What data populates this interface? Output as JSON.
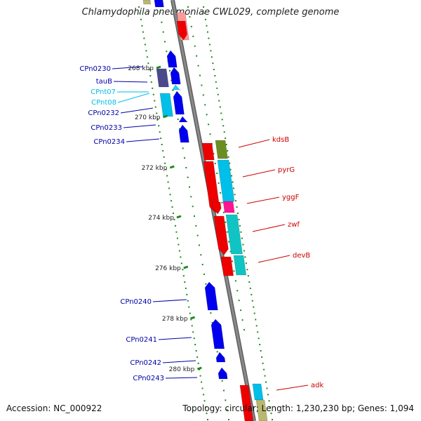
{
  "title": "Chlamydophila pneumoniae CWL029, complete genome",
  "footer": {
    "accession": "Accession: NC_000922",
    "topology": "Topology: circular; Length: 1,230,230 bp; Genes: 1,094"
  },
  "colors": {
    "blue": "#0000ee",
    "dark_blue": "#1a1aa8",
    "slate": "#4a4a8c",
    "cyan": "#00bfe8",
    "light_cyan": "#22d3ee",
    "red": "#ee0000",
    "olive": "#6b8e23",
    "teal": "#10c4c4",
    "magenta": "#ff1493",
    "pink": "#ff9a9a",
    "khaki": "#b8b870",
    "backbone": "#8a8a8a",
    "tick": "#1a8a1a"
  },
  "scale_labels": [
    "268 kbp",
    "270 kbp",
    "272 kbp",
    "274 kbp",
    "276 kbp",
    "278 kbp",
    "280 kbp"
  ],
  "left_genes": [
    {
      "name": "CPn0230",
      "color": "#0000aa"
    },
    {
      "name": "tauB",
      "color": "#0000aa"
    },
    {
      "name": "CPnt07",
      "color": "#00bfe8"
    },
    {
      "name": "CPnt08",
      "color": "#00bfe8"
    },
    {
      "name": "CPn0232",
      "color": "#0000aa"
    },
    {
      "name": "CPn0233",
      "color": "#0000aa"
    },
    {
      "name": "CPn0234",
      "color": "#0000aa"
    },
    {
      "name": "CPn0240",
      "color": "#0000aa"
    },
    {
      "name": "CPn0241",
      "color": "#0000aa"
    },
    {
      "name": "CPn0242",
      "color": "#0000aa"
    },
    {
      "name": "CPn0243",
      "color": "#0000aa"
    }
  ],
  "right_genes": [
    {
      "name": "kdsB",
      "color": "#cc0000"
    },
    {
      "name": "pyrG",
      "color": "#cc0000"
    },
    {
      "name": "yggF",
      "color": "#cc0000"
    },
    {
      "name": "zwf",
      "color": "#cc0000"
    },
    {
      "name": "devB",
      "color": "#cc0000"
    },
    {
      "name": "adk",
      "color": "#cc0000"
    }
  ]
}
